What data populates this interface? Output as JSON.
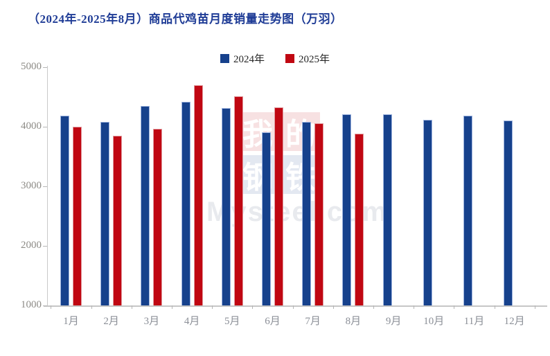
{
  "page": {
    "title": "（2024年-2025年8月）商品代鸡苗月度销量走势图（万羽）"
  },
  "legend": {
    "items": [
      {
        "label": "2024年",
        "color": "#16418C"
      },
      {
        "label": "2025年",
        "color": "#C00712"
      }
    ]
  },
  "watermark": {
    "tiles": [
      {
        "char": "我",
        "color": "red"
      },
      {
        "char": "的",
        "color": "red"
      },
      {
        "char": "钢",
        "color": "blue"
      },
      {
        "char": "铁",
        "color": "blue"
      }
    ],
    "text": "Mysteel.com"
  },
  "chart_data": {
    "type": "bar",
    "title": "（2024年-2025年8月）商品代鸡苗月度销量走势图（万羽）",
    "unit": "万羽",
    "categories": [
      "1月",
      "2月",
      "3月",
      "4月",
      "5月",
      "6月",
      "7月",
      "8月",
      "9月",
      "10月",
      "11月",
      "12月"
    ],
    "series": [
      {
        "name": "2024年",
        "color": "#16418C",
        "values": [
          4190,
          4080,
          4350,
          4420,
          4310,
          3910,
          4080,
          4210,
          4210,
          4120,
          4190,
          4100
        ]
      },
      {
        "name": "2025年",
        "color": "#C00712",
        "values": [
          4000,
          3850,
          3970,
          4700,
          4510,
          4320,
          4060,
          3880,
          null,
          null,
          null,
          null
        ]
      }
    ],
    "xlabel": "",
    "ylabel": "",
    "ylim": [
      1000,
      5000
    ],
    "yticks": [
      1000,
      2000,
      3000,
      4000,
      5000
    ],
    "grid": false,
    "legend_position": "top-center"
  }
}
